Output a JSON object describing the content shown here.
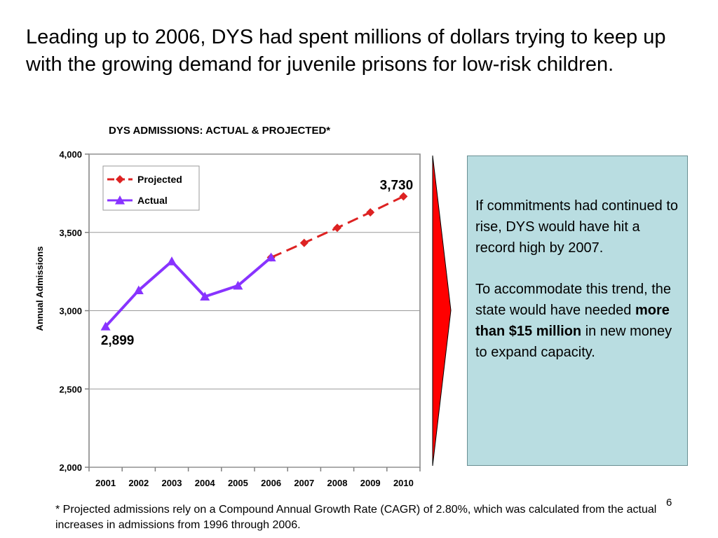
{
  "slide": {
    "headline": "Leading up to 2006, DYS had spent millions of dollars trying to keep up with the growing demand for juvenile prisons for low-risk children.",
    "page_number": "6",
    "footnote": "* Projected admissions rely on a Compound Annual Growth Rate (CAGR) of 2.80%, which was calculated from the actual increases in admissions from 1996 through 2006."
  },
  "callout": {
    "para1": "If commitments had continued to rise, DYS would have hit a record high by 2007.",
    "para2_before": "To accommodate this trend, the state would have needed ",
    "para2_bold": "more than $15 million",
    "para2_after": " in new money to expand capacity.",
    "box_color": "#b9dde1",
    "arrow_color": "#ff0000"
  },
  "chart_data": {
    "type": "line",
    "title": "DYS ADMISSIONS: ACTUAL & PROJECTED*",
    "xlabel": "",
    "ylabel": "Annual Admissions",
    "categories": [
      "2001",
      "2002",
      "2003",
      "2004",
      "2005",
      "2006",
      "2007",
      "2008",
      "2009",
      "2010"
    ],
    "ylim": [
      2000,
      4000
    ],
    "yticks": [
      2000,
      2500,
      3000,
      3500,
      4000
    ],
    "ytick_labels": [
      "2,000",
      "2,500",
      "3,000",
      "3,500",
      "4,000"
    ],
    "grid": true,
    "legend_position": "top-left",
    "series": [
      {
        "name": "Projected",
        "color": "#dd2222",
        "style": "dashed",
        "marker": "diamond",
        "x": [
          "2006",
          "2007",
          "2008",
          "2009",
          "2010"
        ],
        "values": [
          3340,
          3433,
          3529,
          3628,
          3730
        ]
      },
      {
        "name": "Actual",
        "color": "#8833ff",
        "style": "solid",
        "marker": "triangle",
        "x": [
          "2001",
          "2002",
          "2003",
          "2004",
          "2005",
          "2006"
        ],
        "values": [
          2899,
          3130,
          3315,
          3090,
          3160,
          3340
        ]
      }
    ],
    "annotations": [
      {
        "text": "2,899",
        "x": "2001",
        "value": 2899,
        "position": "below"
      },
      {
        "text": "3,730",
        "x": "2010",
        "value": 3730,
        "position": "above"
      }
    ]
  }
}
